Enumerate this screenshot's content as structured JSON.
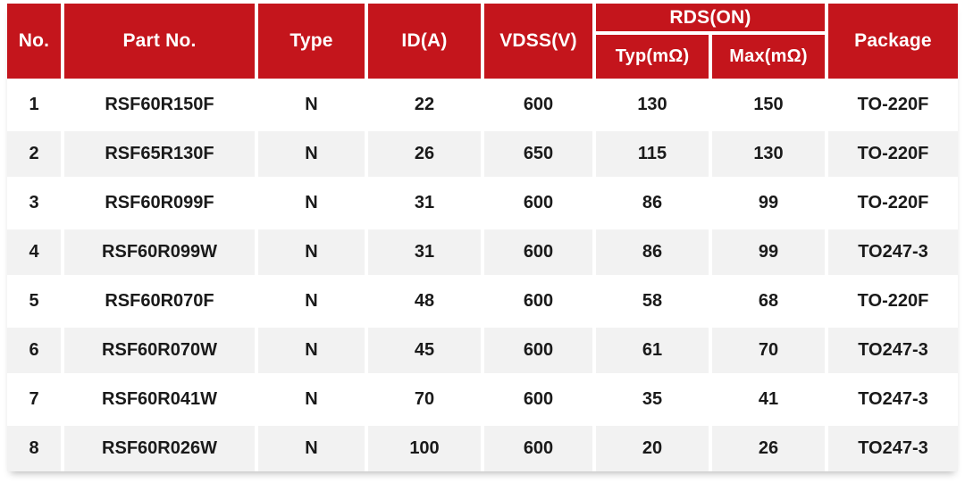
{
  "chart_data": {
    "type": "table",
    "columns": [
      "No.",
      "Part No.",
      "Type",
      "ID(A)",
      "VDSS(V)",
      "Typ(mΩ)",
      "Max(mΩ)",
      "Package"
    ],
    "column_groups": [
      {
        "label": "RDS(ON)",
        "spans": [
          "Typ(mΩ)",
          "Max(mΩ)"
        ]
      }
    ],
    "rows": [
      [
        "1",
        "RSF60R150F",
        "N",
        "22",
        "600",
        "130",
        "150",
        "TO-220F"
      ],
      [
        "2",
        "RSF65R130F",
        "N",
        "26",
        "650",
        "115",
        "130",
        "TO-220F"
      ],
      [
        "3",
        "RSF60R099F",
        "N",
        "31",
        "600",
        "86",
        "99",
        "TO-220F"
      ],
      [
        "4",
        "RSF60R099W",
        "N",
        "31",
        "600",
        "86",
        "99",
        "TO247-3"
      ],
      [
        "5",
        "RSF60R070F",
        "N",
        "48",
        "600",
        "58",
        "68",
        "TO-220F"
      ],
      [
        "6",
        "RSF60R070W",
        "N",
        "45",
        "600",
        "61",
        "70",
        "TO247-3"
      ],
      [
        "7",
        "RSF60R041W",
        "N",
        "70",
        "600",
        "35",
        "41",
        "TO247-3"
      ],
      [
        "8",
        "RSF60R026W",
        "N",
        "100",
        "600",
        "20",
        "26",
        "TO247-3"
      ]
    ],
    "colors": {
      "header_bg": "#C4151C",
      "header_text": "#FFFFFF",
      "row_bg": "#FFFFFF",
      "row_alt_bg": "#F2F2F2",
      "body_text": "#1A1A1A"
    },
    "layout_hints": {
      "striped": true,
      "grid_gutters_white": true,
      "header_two_tier": true
    }
  }
}
